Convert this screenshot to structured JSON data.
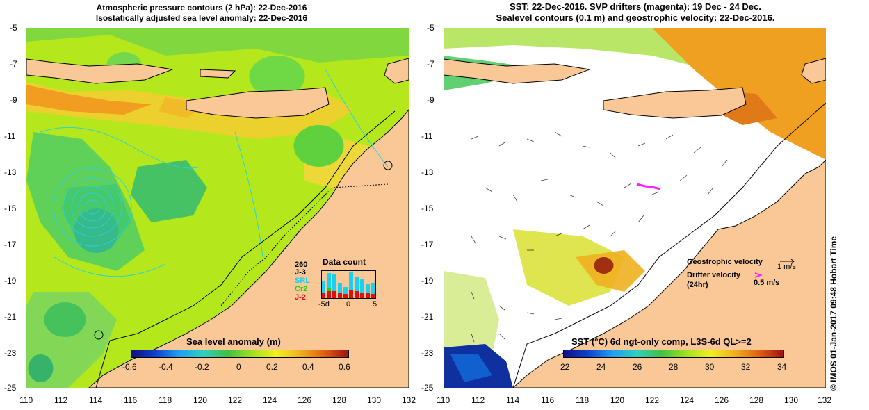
{
  "left_panel": {
    "title_line1": "Atmospheric pressure contours (2 hPa): 22-Dec-2016",
    "title_line2": "Isostatically adjusted sea level anomaly: 22-Dec-2016",
    "colorbar_label": "Sea level anomaly (m)",
    "colorbar_ticks": [
      "-0.6",
      "-0.4",
      "-0.2",
      "0",
      "0.2",
      "0.4",
      "0.6"
    ],
    "data_count": {
      "title": "Data count",
      "max_label": "260",
      "series_labels": [
        "J-3",
        "SRL",
        "Cr2",
        "J-2"
      ],
      "series_colors": [
        "#000000",
        "#19d0f0",
        "#20d020",
        "#e01010"
      ],
      "x_ticks": [
        "-5d",
        "0",
        "5"
      ]
    }
  },
  "right_panel": {
    "title_line1": "SST: 22-Dec-2016. SVP drifters (magenta): 19 Dec - 24 Dec.",
    "title_line2": "Sealevel contours (0.1 m) and geostrophic velocity: 22-Dec-2016.",
    "geostrophic_label": "Geostrophic velocity",
    "geostrophic_scale": "1 m/s",
    "drifter_label_line1": "Drifter velocity",
    "drifter_label_line2": "(24hr)",
    "drifter_scale": "0.5 m/s",
    "colorbar_label": "SST (°C) 6d ngt-only comp, L3S-6d QL>=2",
    "colorbar_ticks": [
      "22",
      "24",
      "26",
      "28",
      "30",
      "32",
      "34"
    ]
  },
  "axes": {
    "y_ticks": [
      "-5",
      "-7",
      "-9",
      "-11",
      "-13",
      "-15",
      "-17",
      "-19",
      "-21",
      "-23",
      "-25"
    ],
    "x_ticks": [
      "110",
      "112",
      "114",
      "116",
      "118",
      "120",
      "122",
      "124",
      "126",
      "128",
      "130",
      "132"
    ]
  },
  "credit": "© IMOS 01-Jan-2017 09:48 Hobart Time",
  "colors": {
    "land": "#f9c896",
    "sla_bg": "#b4e81c",
    "sst_warm": "#f0a020",
    "drifter": "#ff20ff"
  }
}
